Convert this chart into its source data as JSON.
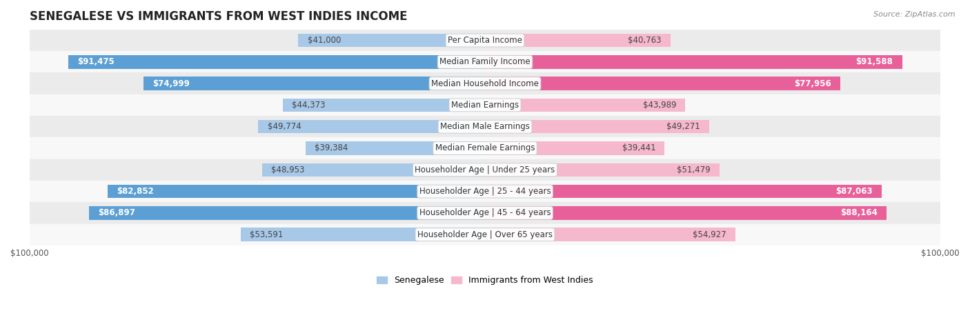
{
  "title": "SENEGALESE VS IMMIGRANTS FROM WEST INDIES INCOME",
  "source": "Source: ZipAtlas.com",
  "categories": [
    "Per Capita Income",
    "Median Family Income",
    "Median Household Income",
    "Median Earnings",
    "Median Male Earnings",
    "Median Female Earnings",
    "Householder Age | Under 25 years",
    "Householder Age | 25 - 44 years",
    "Householder Age | 45 - 64 years",
    "Householder Age | Over 65 years"
  ],
  "senegalese": [
    41000,
    91475,
    74999,
    44373,
    49774,
    39384,
    48953,
    82852,
    86897,
    53591
  ],
  "west_indies": [
    40763,
    91588,
    77956,
    43989,
    49271,
    39441,
    51479,
    87063,
    88164,
    54927
  ],
  "senegalese_labels": [
    "$41,000",
    "$91,475",
    "$74,999",
    "$44,373",
    "$49,774",
    "$39,384",
    "$48,953",
    "$82,852",
    "$86,897",
    "$53,591"
  ],
  "west_indies_labels": [
    "$40,763",
    "$91,588",
    "$77,956",
    "$43,989",
    "$49,271",
    "$39,441",
    "$51,479",
    "$87,063",
    "$88,164",
    "$54,927"
  ],
  "max_val": 100000,
  "blue_light": "#a8c8e8",
  "blue_dark": "#5b9fd4",
  "pink_light": "#f5b8cc",
  "pink_dark": "#e8609a",
  "bg_row_light": "#ebebeb",
  "bg_row_white": "#f8f8f8",
  "bar_height": 0.62,
  "threshold": 65000,
  "label_fontsize": 8.5,
  "title_fontsize": 12,
  "category_fontsize": 8.5
}
